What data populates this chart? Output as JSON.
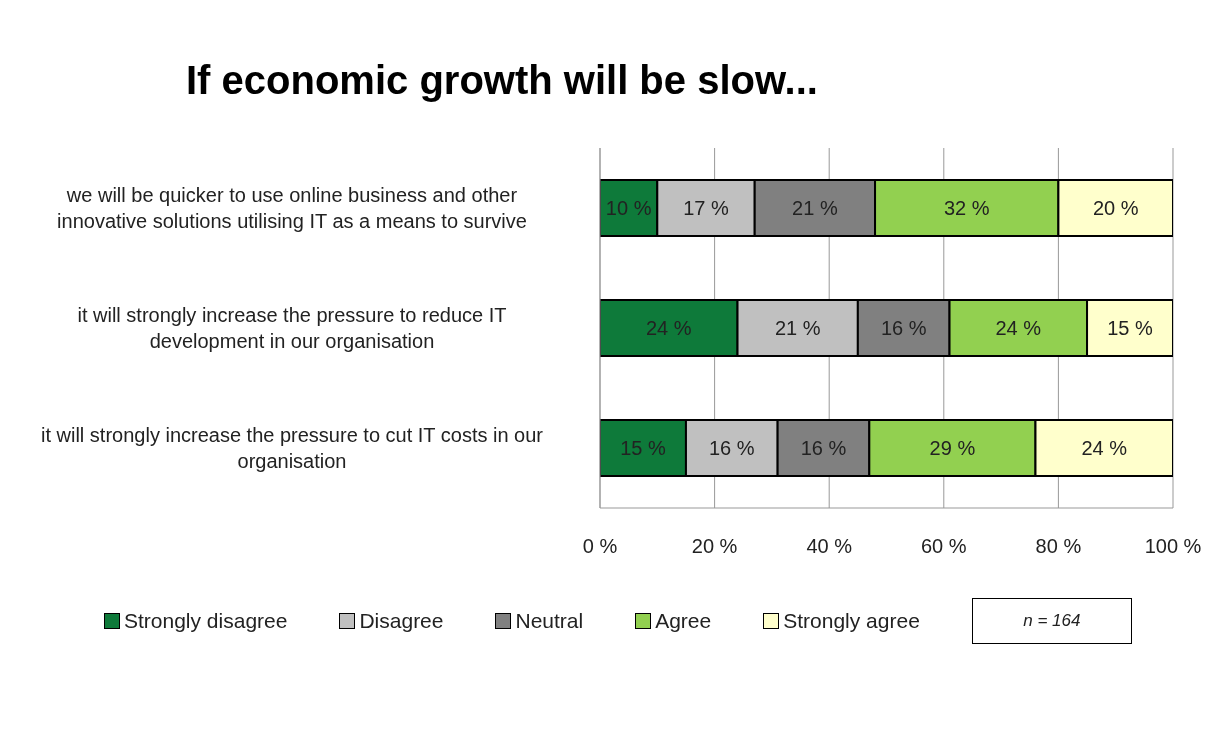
{
  "chart_data": {
    "type": "bar",
    "orientation": "horizontal",
    "stacked": true,
    "title": "If economic growth will be slow...",
    "categories": [
      "we will be quicker to use online business and other innovative solutions utilising IT as a means to survive",
      "it will strongly increase the pressure to reduce IT development in our organisation",
      "it will strongly increase the pressure to cut IT costs in our organisation"
    ],
    "series": [
      {
        "name": "Strongly disagree",
        "color": "#0e7a3a",
        "values": [
          10,
          24,
          15
        ],
        "value_labels": [
          "10 %",
          "24 %",
          "15 %"
        ]
      },
      {
        "name": "Disagree",
        "color": "#c0c0c0",
        "values": [
          17,
          21,
          16
        ],
        "value_labels": [
          "17 %",
          "21 %",
          "16 %"
        ]
      },
      {
        "name": "Neutral",
        "color": "#808080",
        "values": [
          21,
          16,
          16
        ],
        "value_labels": [
          "21 %",
          "16 %",
          "16 %"
        ]
      },
      {
        "name": "Agree",
        "color": "#92d050",
        "values": [
          32,
          24,
          29
        ],
        "value_labels": [
          "32 %",
          "24 %",
          "29 %"
        ]
      },
      {
        "name": "Strongly agree",
        "color": "#ffffcc",
        "values": [
          20,
          15,
          24
        ],
        "value_labels": [
          "20 %",
          "15 %",
          "24 %"
        ]
      }
    ],
    "xlim": [
      0,
      100
    ],
    "xticks": [
      {
        "value": 0,
        "label": "0 %"
      },
      {
        "value": 20,
        "label": "20 %"
      },
      {
        "value": 40,
        "label": "40 %"
      },
      {
        "value": 60,
        "label": "60 %"
      },
      {
        "value": 80,
        "label": "80 %"
      },
      {
        "value": 100,
        "label": "100 %"
      }
    ],
    "grid": "x",
    "legend": "bottom",
    "annotations": [
      "n = 164"
    ]
  }
}
